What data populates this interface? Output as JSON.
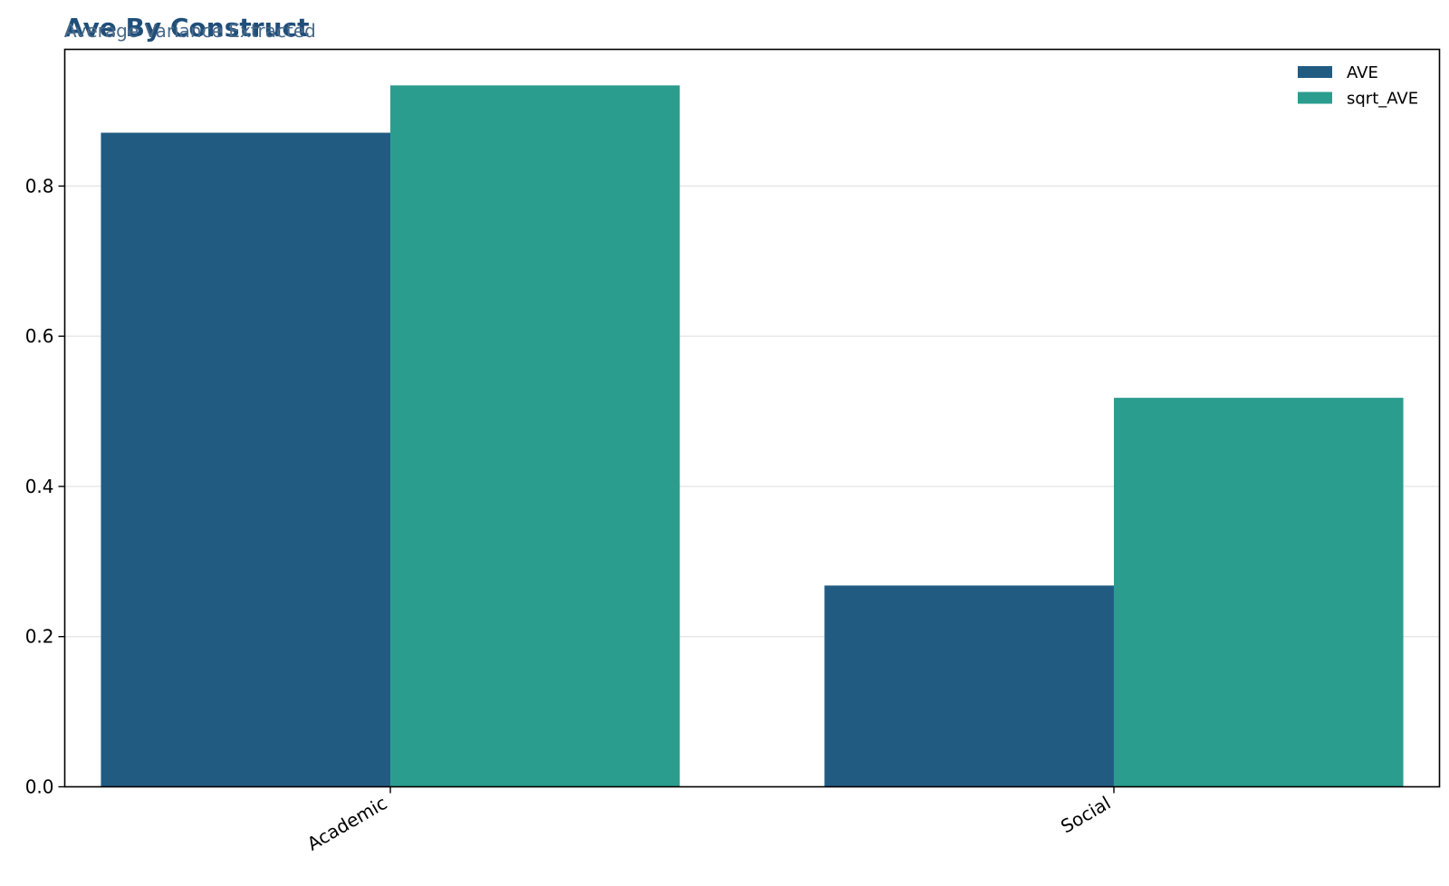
{
  "chart_data": {
    "type": "bar",
    "title": "Ave By Construct",
    "subtitle": "Average Variance Extracted",
    "xlabel": "",
    "ylabel": "",
    "categories": [
      "Academic",
      "Social"
    ],
    "series": [
      {
        "name": "AVE",
        "values": [
          0.871,
          0.268
        ],
        "color": "#215b82"
      },
      {
        "name": "sqrt_AVE",
        "values": [
          0.934,
          0.518
        ],
        "color": "#2a9d8e"
      }
    ],
    "ylim": [
      0,
      0.982
    ],
    "yticks": [
      0.0,
      0.2,
      0.4,
      0.6,
      0.8
    ],
    "ytick_labels": [
      "0.0",
      "0.2",
      "0.4",
      "0.6",
      "0.8"
    ],
    "grid": true,
    "legend_position": "top-right",
    "colors": {
      "title": "#1f4e79",
      "subtitle": "#4a6a8a",
      "grid": "#e6e6e6",
      "axis": "#000000"
    }
  }
}
